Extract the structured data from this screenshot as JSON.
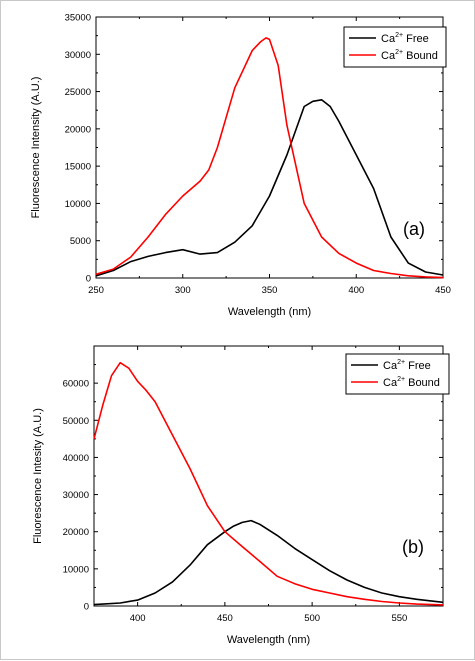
{
  "chart_data": [
    {
      "type": "line",
      "panel_label": "(a)",
      "xlabel": "Wavelength (nm)",
      "ylabel": "Fluorescence Intensity (A.U.)",
      "xlim": [
        250,
        450
      ],
      "ylim": [
        0,
        35000
      ],
      "xticks": [
        250,
        300,
        350,
        400,
        450
      ],
      "yticks": [
        0,
        5000,
        10000,
        15000,
        20000,
        25000,
        30000,
        35000
      ],
      "legend_position": "top-right",
      "grid": false,
      "series": [
        {
          "name_base": "Ca",
          "name_sup": "2+",
          "name_rest": " Free",
          "color": "#000000",
          "x": [
            250,
            260,
            270,
            280,
            290,
            300,
            310,
            320,
            330,
            340,
            350,
            360,
            370,
            375,
            380,
            385,
            390,
            400,
            410,
            420,
            430,
            440,
            450
          ],
          "y": [
            300,
            1000,
            2200,
            2900,
            3400,
            3800,
            3200,
            3400,
            4800,
            7000,
            11000,
            16500,
            23000,
            23700,
            23900,
            23000,
            21000,
            16500,
            12000,
            5500,
            2000,
            800,
            400
          ]
        },
        {
          "name_base": "Ca",
          "name_sup": "2+",
          "name_rest": " Bound",
          "color": "#ff0000",
          "x": [
            250,
            260,
            270,
            280,
            290,
            300,
            310,
            315,
            320,
            330,
            340,
            345,
            348,
            350,
            355,
            360,
            370,
            380,
            390,
            400,
            410,
            420,
            430,
            440,
            450
          ],
          "y": [
            500,
            1200,
            2800,
            5500,
            8500,
            11000,
            13000,
            14500,
            17500,
            25500,
            30500,
            31700,
            32200,
            32000,
            28500,
            20500,
            10000,
            5500,
            3300,
            2000,
            1000,
            600,
            300,
            150,
            50
          ]
        }
      ]
    },
    {
      "type": "line",
      "panel_label": "(b)",
      "xlabel": "Wavelength (nm)",
      "ylabel": "Fluorescence Intesity (A.U.)",
      "xlim": [
        375,
        575
      ],
      "ylim": [
        0,
        70000
      ],
      "xticks": [
        400,
        450,
        500,
        550
      ],
      "yticks": [
        0,
        10000,
        20000,
        30000,
        40000,
        50000,
        60000
      ],
      "legend_position": "top-right",
      "grid": false,
      "series": [
        {
          "name_base": "Ca",
          "name_sup": "2+",
          "name_rest": " Free",
          "color": "#000000",
          "x": [
            375,
            380,
            390,
            400,
            410,
            420,
            430,
            440,
            450,
            455,
            460,
            465,
            470,
            480,
            490,
            500,
            510,
            520,
            530,
            540,
            550,
            560,
            575
          ],
          "y": [
            400,
            500,
            800,
            1600,
            3500,
            6500,
            11000,
            16500,
            20000,
            21500,
            22500,
            23000,
            22000,
            19000,
            15500,
            12500,
            9500,
            7000,
            5000,
            3500,
            2500,
            1800,
            1000
          ]
        },
        {
          "name_base": "Ca",
          "name_sup": "2+",
          "name_rest": " Bound",
          "color": "#ff0000",
          "x": [
            375,
            380,
            385,
            390,
            395,
            400,
            405,
            410,
            420,
            430,
            440,
            450,
            460,
            470,
            480,
            490,
            500,
            510,
            520,
            530,
            540,
            550,
            560,
            575
          ],
          "y": [
            45000,
            54000,
            62000,
            65500,
            64000,
            60500,
            58000,
            55000,
            46000,
            37000,
            27000,
            20000,
            16000,
            12000,
            8000,
            6000,
            4500,
            3500,
            2500,
            1800,
            1200,
            800,
            500,
            300
          ]
        }
      ]
    }
  ]
}
